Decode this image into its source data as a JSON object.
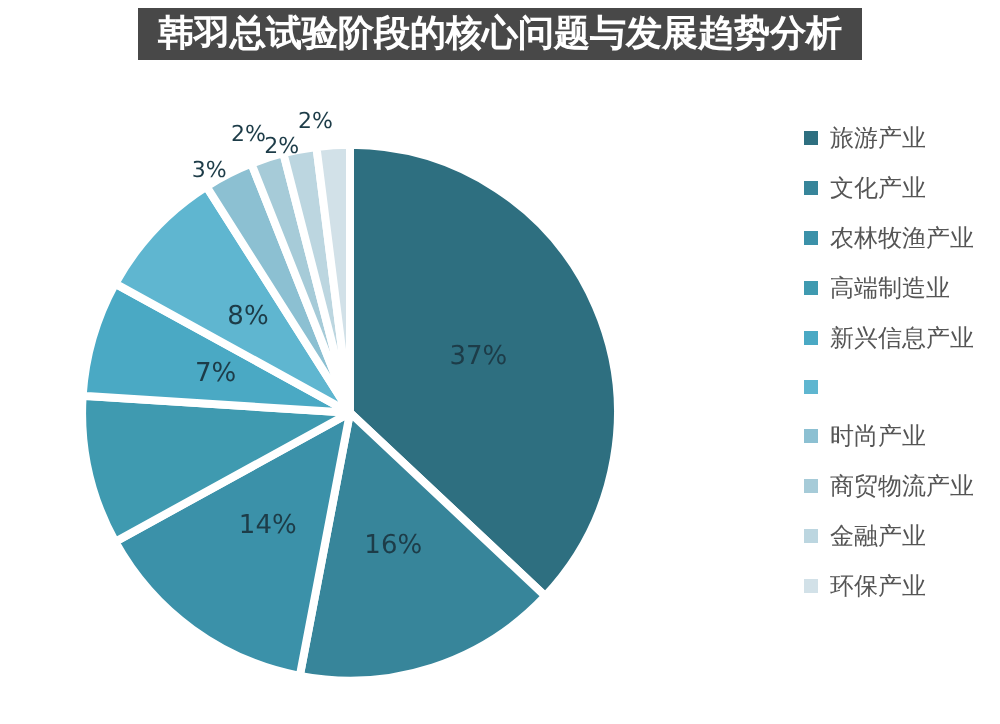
{
  "chart_data": {
    "type": "pie",
    "title": "韩羽总试验阶段的核心问题与发展趋势分析",
    "categories": [
      "旅游产业",
      "文化产业",
      "农林牧渔产业",
      "高端制造业",
      "新兴信息产业",
      null,
      "时尚产业",
      "商贸物流产业",
      "金融产业",
      "环保产业"
    ],
    "values": [
      37,
      16,
      14,
      9,
      7,
      8,
      3,
      2,
      2,
      2
    ],
    "value_labels": [
      "37%",
      "16%",
      "14%",
      null,
      "7%",
      "8%",
      "3%",
      "2%",
      "2%",
      "2%"
    ],
    "colors": [
      "#2e6f80",
      "#37859a",
      "#3b91a9",
      "#3f9ab0",
      "#4aa9c4",
      "#5fb6d0",
      "#8cc0d2",
      "#a6cbd8",
      "#bcd6e0",
      "#d2e1e8"
    ],
    "legend": "right"
  }
}
